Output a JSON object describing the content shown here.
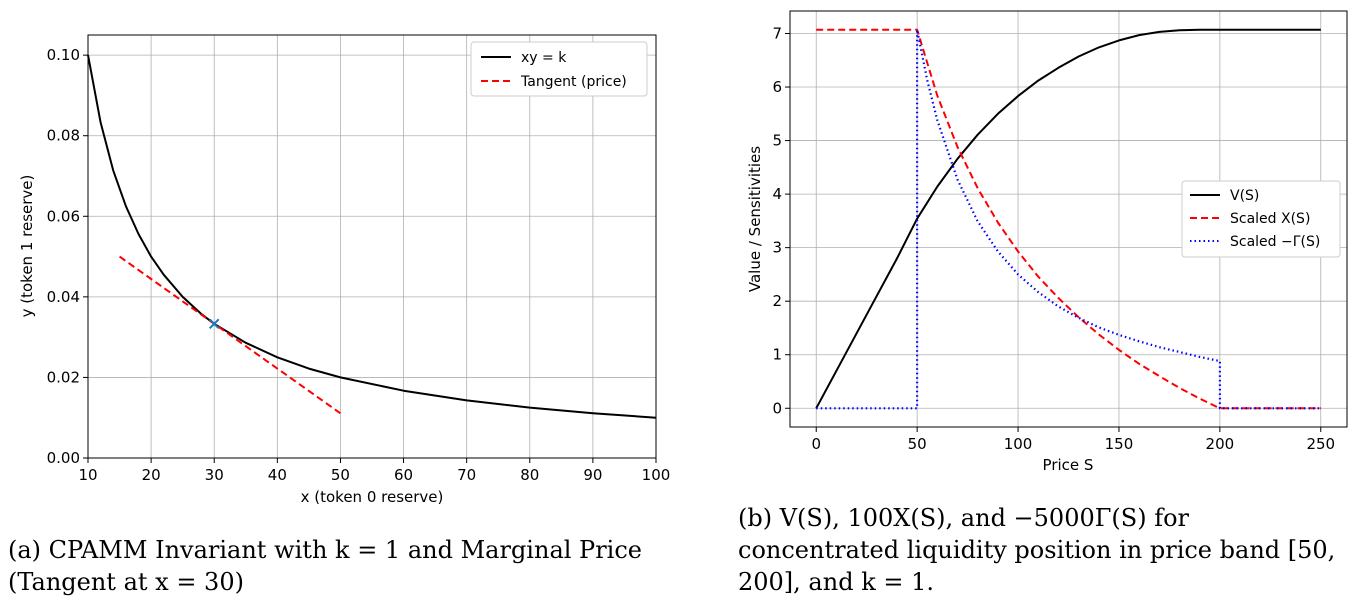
{
  "captions": {
    "a": "(a) CPAMM Invariant with k = 1 and Marginal Price (Tangent at x = 30)",
    "b": "(b) V(S), 100X(S), and −5000Γ(S) for concentrated liquidity position in price band [50, 200], and k = 1."
  },
  "chart_data": [
    {
      "type": "line",
      "title": "",
      "xlabel": "x (token 0 reserve)",
      "ylabel": "y (token 1 reserve)",
      "xlim": [
        10,
        100
      ],
      "ylim": [
        0,
        0.105
      ],
      "xticks": [
        "10",
        "20",
        "30",
        "40",
        "50",
        "60",
        "70",
        "80",
        "90",
        "100"
      ],
      "yticks": [
        "0.00",
        "0.02",
        "0.04",
        "0.06",
        "0.08",
        "0.10"
      ],
      "grid": true,
      "legend": "top-right",
      "series": [
        {
          "name": "xy = k",
          "color": "#000000",
          "style": "solid",
          "x": [
            10,
            12,
            14,
            16,
            18,
            20,
            22,
            25,
            28,
            30,
            35,
            40,
            45,
            50,
            60,
            70,
            80,
            90,
            100
          ],
          "y": [
            0.1,
            0.0833,
            0.0714,
            0.0625,
            0.0556,
            0.05,
            0.0455,
            0.04,
            0.0357,
            0.0333,
            0.0286,
            0.025,
            0.0222,
            0.02,
            0.0167,
            0.0143,
            0.0125,
            0.0111,
            0.01
          ]
        },
        {
          "name": "Tangent (price)",
          "color": "#ff0000",
          "style": "dashed",
          "x": [
            15,
            50
          ],
          "y": [
            0.05,
            0.0111
          ]
        }
      ],
      "markers": [
        {
          "x": 30,
          "y": 0.0333,
          "symbol": "x",
          "color": "#1f77b4"
        }
      ]
    },
    {
      "type": "line",
      "title": "",
      "xlabel": "Price S",
      "ylabel": "Value / Sensitivities",
      "xlim": [
        -13,
        263
      ],
      "ylim": [
        -0.35,
        7.42
      ],
      "xticks": [
        "0",
        "50",
        "100",
        "150",
        "200",
        "250"
      ],
      "yticks": [
        "0",
        "1",
        "2",
        "3",
        "4",
        "5",
        "6",
        "7"
      ],
      "grid": true,
      "legend": "center-right",
      "series": [
        {
          "name": "V(S)",
          "color": "#000000",
          "style": "solid",
          "x": [
            0,
            10,
            20,
            30,
            40,
            50,
            60,
            70,
            80,
            90,
            100,
            110,
            120,
            130,
            140,
            150,
            160,
            170,
            180,
            190,
            200,
            250
          ],
          "y": [
            0,
            0.7,
            1.4,
            2.1,
            2.8,
            3.54,
            4.14,
            4.66,
            5.11,
            5.5,
            5.83,
            6.12,
            6.36,
            6.57,
            6.74,
            6.87,
            6.97,
            7.03,
            7.06,
            7.07,
            7.07,
            7.07
          ]
        },
        {
          "name": "Scaled X(S)",
          "color": "#ff0000",
          "style": "dashed",
          "x": [
            0,
            50,
            60,
            70,
            80,
            90,
            100,
            110,
            120,
            130,
            140,
            150,
            160,
            170,
            180,
            190,
            200,
            250
          ],
          "y": [
            7.07,
            7.07,
            5.84,
            4.88,
            4.11,
            3.47,
            2.93,
            2.46,
            2.06,
            1.7,
            1.38,
            1.09,
            0.83,
            0.6,
            0.38,
            0.18,
            0,
            0
          ]
        },
        {
          "name": "Scaled −Γ(S)",
          "color": "#0000ff",
          "style": "dotted",
          "x": [
            0,
            50,
            50,
            55,
            60,
            70,
            80,
            90,
            100,
            110,
            120,
            130,
            140,
            150,
            160,
            170,
            180,
            190,
            200,
            200,
            250
          ],
          "y": [
            0,
            0,
            7.07,
            6.13,
            5.38,
            4.27,
            3.49,
            2.93,
            2.5,
            2.17,
            1.9,
            1.69,
            1.51,
            1.37,
            1.25,
            1.14,
            1.05,
            0.96,
            0.88,
            0,
            0
          ]
        }
      ]
    }
  ]
}
